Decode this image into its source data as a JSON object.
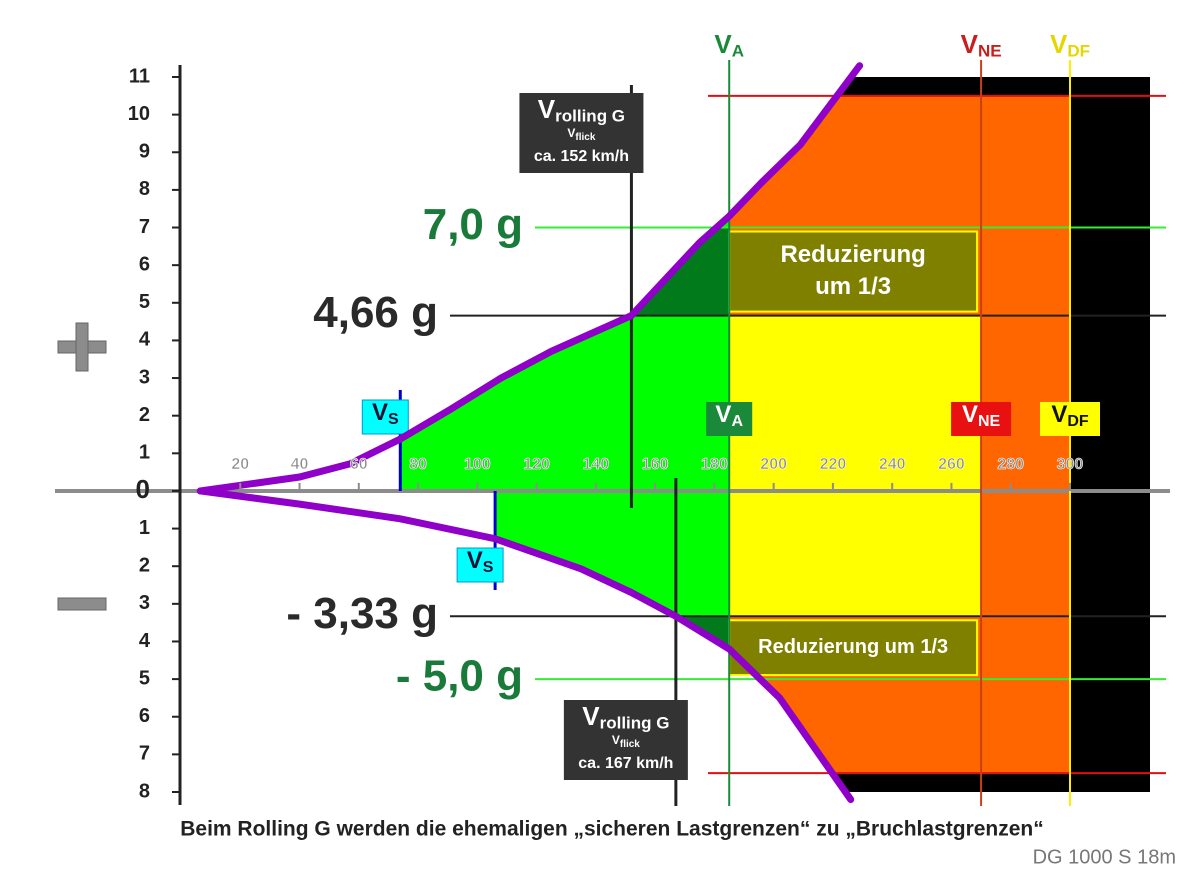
{
  "chart_data": {
    "type": "vn_diagram",
    "title": "Beim Rolling G werden die ehemaligen „sicheren Lastgrenzen“ zu „Bruchlastgrenzen“",
    "subtitle": "DG 1000 S  18m",
    "xlim": [
      0,
      327
    ],
    "ylim": [
      -8,
      11
    ],
    "xticks": [
      20,
      40,
      60,
      80,
      100,
      120,
      140,
      160,
      180,
      200,
      220,
      240,
      260,
      280,
      300
    ],
    "yticks": [
      {
        "value": -8,
        "label": "8"
      },
      {
        "value": -7,
        "label": "7"
      },
      {
        "value": -6,
        "label": "6"
      },
      {
        "value": -5,
        "label": "5"
      },
      {
        "value": -4,
        "label": "4"
      },
      {
        "value": -3,
        "label": "3"
      },
      {
        "value": -2,
        "label": "2"
      },
      {
        "value": -1,
        "label": "1"
      },
      0,
      1,
      2,
      3,
      4,
      5,
      6,
      7,
      8,
      9,
      10,
      11
    ],
    "envelope": {
      "color": "#8f00c8",
      "upper": {
        "x": [
          6.5,
          40,
          57,
          74,
          91,
          108,
          125,
          152,
          175,
          185,
          196,
          209,
          229
        ],
        "values": [
          0,
          0.37,
          0.72,
          1.38,
          2.17,
          3.0,
          3.71,
          4.66,
          6.6,
          7.3,
          8.2,
          9.2,
          11.3
        ]
      },
      "lower": {
        "x": [
          6.5,
          40,
          74,
          106,
          135,
          152,
          167,
          185,
          202,
          226
        ],
        "values": [
          0,
          -0.35,
          -0.74,
          -1.27,
          -2.07,
          -2.7,
          -3.33,
          -4.2,
          -5.5,
          -8.2
        ]
      }
    },
    "regions": {
      "green": "#00ff00",
      "dark_green": "#007a1a",
      "yellow": "#ffff00",
      "orange": "#ff6600",
      "black": "#000000",
      "olive": "#7f7f00",
      "olive_border": "#ffff00"
    },
    "load_limits": [
      {
        "value": 10.5,
        "color": "#e01010"
      },
      {
        "value": 7,
        "label": "7,0 g",
        "color": "#33ee33",
        "label_color": "#1a7a3a"
      },
      {
        "value": 4.66,
        "label": "4,66 g",
        "color": "#222222",
        "label_color": "#2a2a2a"
      },
      {
        "value": -3.33,
        "label": "- 3,33 g",
        "color": "#222222",
        "label_color": "#2a2a2a"
      },
      {
        "value": -5,
        "label": "- 5,0 g",
        "color": "#33ee33",
        "label_color": "#1a7a3a"
      },
      {
        "value": -7.5,
        "color": "#e01010"
      }
    ],
    "vlines": [
      {
        "value": 185,
        "color": "#1a8a3a",
        "top_label": {
          "main": "V",
          "sub": "A"
        },
        "top_color": "#1a8a3a",
        "box_label": {
          "main": "V",
          "sub": "A"
        },
        "box_color": "#1a8a3a",
        "box_text": "#ffffff"
      },
      {
        "value": 270,
        "color": "#c8401a",
        "top_label": {
          "main": "V",
          "sub": "NE"
        },
        "top_color": "#c81e1e",
        "box_label": {
          "main": "V",
          "sub": "NE"
        },
        "box_color": "#e81010",
        "box_text": "#ffffff"
      },
      {
        "value": 300,
        "color": "#ffee00",
        "top_label": {
          "main": "V",
          "sub": "DF"
        },
        "top_color": "#e6d600",
        "box_label": {
          "main": "V",
          "sub": "DF"
        },
        "box_color": "#ffff00",
        "box_text": "#111111"
      }
    ],
    "stall": {
      "line_color": "#0000cc",
      "box_color": "#00ffff",
      "text_color": "#111133",
      "items": [
        {
          "value": 74,
          "side": "positive",
          "label": {
            "main": "V",
            "sub": "S"
          }
        },
        {
          "value": 106,
          "side": "negative",
          "label": {
            "main": "V",
            "sub": "S"
          }
        }
      ]
    },
    "rolling_g": [
      {
        "value": 152,
        "side": "positive",
        "label": {
          "main": "V",
          "sub": "rolling G"
        },
        "sub_label": {
          "main": "V",
          "sub": "flick"
        },
        "speed_text": "ca. 152 km/h"
      },
      {
        "value": 167,
        "side": "negative",
        "label": {
          "main": "V",
          "sub": "rolling G"
        },
        "sub_label": {
          "main": "V",
          "sub": "flick"
        },
        "speed_text": "ca. 167 km/h"
      }
    ],
    "reductions": [
      {
        "lines": [
          "Reduzierung",
          "um 1/3"
        ]
      },
      {
        "lines": [
          "Reduzierung um 1/3"
        ]
      }
    ]
  }
}
